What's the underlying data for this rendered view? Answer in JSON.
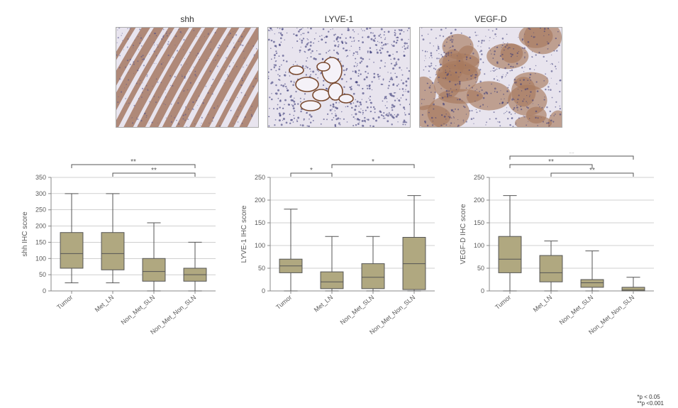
{
  "images": [
    {
      "title": "shh"
    },
    {
      "title": "LYVE-1"
    },
    {
      "title": "VEGF-D"
    }
  ],
  "categories": [
    "Tumor",
    "Met_LN",
    "Non_Met_SLN",
    "Non_Met_Non_SLN"
  ],
  "colors": {
    "box_fill": "#b0a880",
    "box_stroke": "#555555",
    "axis": "#888888",
    "text": "#595959",
    "background": "#ffffff",
    "sig_line": "#555555"
  },
  "fonts": {
    "axis_label": 10,
    "tick": 9,
    "title": 12,
    "sig": 10
  },
  "charts": [
    {
      "ylabel": "shh IHC score",
      "ylim": [
        0,
        350
      ],
      "ytick_step": 50,
      "boxes": [
        {
          "min": 25,
          "q1": 70,
          "median": 115,
          "q3": 180,
          "max": 300
        },
        {
          "min": 25,
          "q1": 65,
          "median": 115,
          "q3": 180,
          "max": 300
        },
        {
          "min": 0,
          "q1": 30,
          "median": 60,
          "q3": 100,
          "max": 210
        },
        {
          "min": 0,
          "q1": 30,
          "median": 50,
          "q3": 70,
          "max": 150
        }
      ],
      "sig": [
        {
          "from": 0,
          "to": 3,
          "label": "**",
          "level": 1
        },
        {
          "from": 1,
          "to": 3,
          "label": "**",
          "level": 0
        }
      ]
    },
    {
      "ylabel": "LYVE-1 IHC score",
      "ylim": [
        0,
        250
      ],
      "ytick_step": 50,
      "boxes": [
        {
          "min": 0,
          "q1": 40,
          "median": 55,
          "q3": 70,
          "max": 180
        },
        {
          "min": 0,
          "q1": 5,
          "median": 20,
          "q3": 42,
          "max": 120
        },
        {
          "min": 0,
          "q1": 5,
          "median": 30,
          "q3": 60,
          "max": 120
        },
        {
          "min": 0,
          "q1": 3,
          "median": 60,
          "q3": 118,
          "max": 210
        }
      ],
      "sig": [
        {
          "from": 0,
          "to": 1,
          "label": "*",
          "level": 0
        },
        {
          "from": 1,
          "to": 3,
          "label": "*",
          "level": 1
        }
      ]
    },
    {
      "ylabel": "VEGF-D IHC score",
      "ylim": [
        0,
        250
      ],
      "ytick_step": 50,
      "boxes": [
        {
          "min": 0,
          "q1": 40,
          "median": 70,
          "q3": 120,
          "max": 210
        },
        {
          "min": 0,
          "q1": 20,
          "median": 40,
          "q3": 78,
          "max": 110
        },
        {
          "min": 0,
          "q1": 8,
          "median": 18,
          "q3": 25,
          "max": 88
        },
        {
          "min": 0,
          "q1": 0,
          "median": 2,
          "q3": 8,
          "max": 30
        }
      ],
      "sig": [
        {
          "from": 1,
          "to": 3,
          "label": "**",
          "level": 0
        },
        {
          "from": 0,
          "to": 2,
          "label": "**",
          "level": 1
        },
        {
          "from": 0,
          "to": 3,
          "label": "**",
          "level": 2
        }
      ]
    }
  ],
  "legend_lines": [
    "*p < 0.05",
    "**p <0.001"
  ]
}
